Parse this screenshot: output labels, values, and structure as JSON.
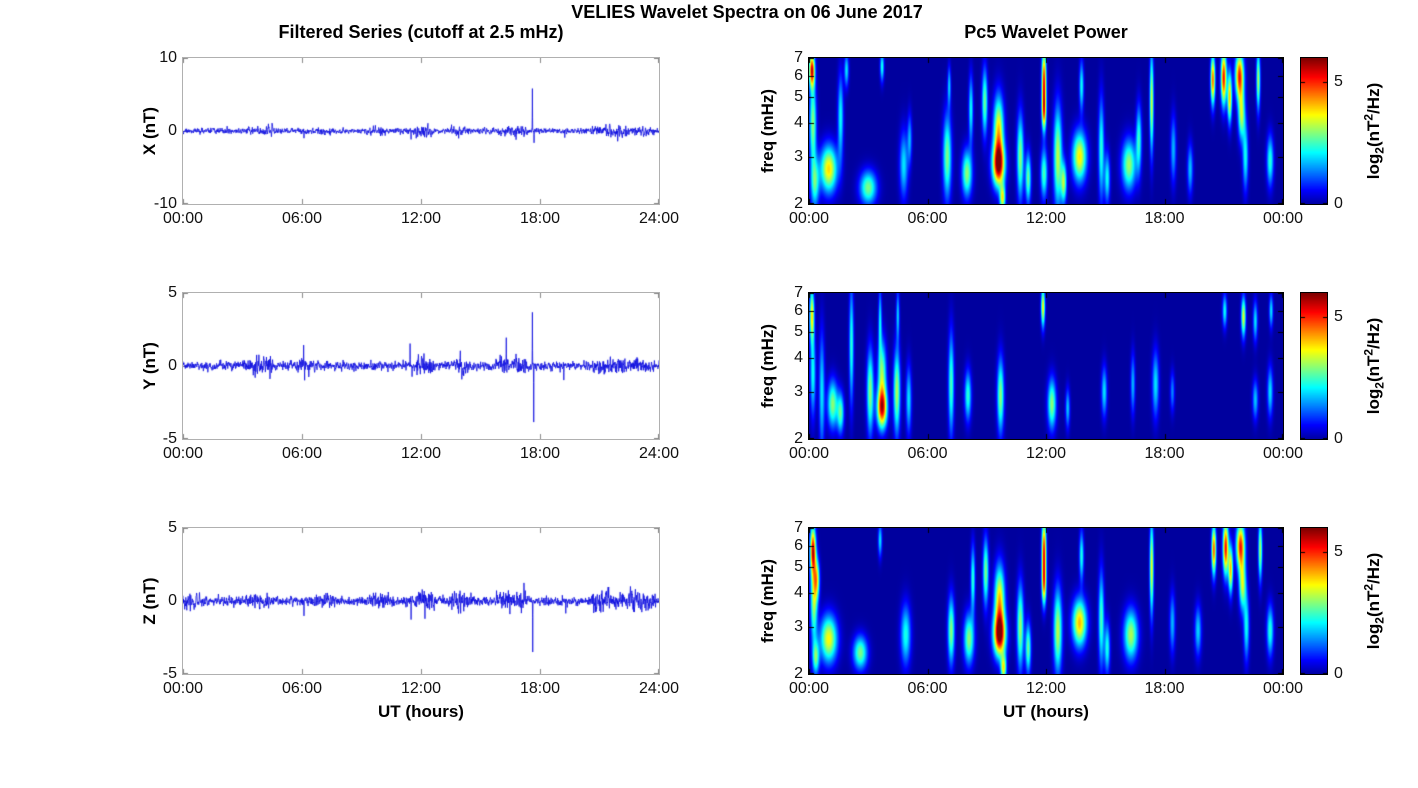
{
  "figure_title": "VELIES Wavelet Spectra on 06 June 2017",
  "chart_data": {
    "type": "multi-panel",
    "left_column": {
      "type": "line",
      "title": "Filtered Series (cutoff at 2.5 mHz)",
      "xlabel": "UT (hours)",
      "x_ticks": [
        "00:00",
        "06:00",
        "12:00",
        "18:00",
        "24:00"
      ],
      "x_range_hours": [
        0,
        24
      ],
      "line_color": "#0d0de0",
      "panels": [
        {
          "ylabel": "X (nT)",
          "ylim": [
            -10,
            10
          ],
          "yticks": [
            10,
            0,
            -10
          ],
          "seed": 11,
          "noise_sigma": 0.13,
          "bursts": [
            [
              3.4,
              4.6,
              0.08
            ],
            [
              6.9,
              7.4,
              0.06
            ],
            [
              9.4,
              10.2,
              0.07
            ],
            [
              11.8,
              12.5,
              0.17
            ],
            [
              13.5,
              14.3,
              0.08
            ],
            [
              16.0,
              17.3,
              0.12
            ],
            [
              20.7,
              22.6,
              0.17
            ],
            [
              22.9,
              23.7,
              0.1
            ]
          ],
          "spikes": [
            [
              6.1,
              -1.0
            ],
            [
              9.7,
              0.8
            ],
            [
              11.5,
              -1.2
            ],
            [
              13.9,
              -1.3
            ],
            [
              17.62,
              5.7
            ],
            [
              17.7,
              -1.6
            ],
            [
              19.25,
              -0.9
            ]
          ]
        },
        {
          "ylabel": "Y (nT)",
          "ylim": [
            -5,
            5
          ],
          "yticks": [
            5,
            0,
            -5
          ],
          "seed": 23,
          "noise_sigma": 0.1,
          "bursts": [
            [
              3.2,
              4.4,
              0.12
            ],
            [
              5.9,
              6.3,
              0.08
            ],
            [
              11.8,
              12.5,
              0.14
            ],
            [
              13.8,
              14.3,
              0.1
            ],
            [
              15.9,
              17.3,
              0.14
            ],
            [
              20.7,
              22.7,
              0.08
            ],
            [
              22.9,
              23.6,
              0.07
            ]
          ],
          "spikes": [
            [
              6.08,
              1.3
            ],
            [
              6.13,
              -1.1
            ],
            [
              8.0,
              -0.6
            ],
            [
              11.45,
              1.45
            ],
            [
              11.55,
              -0.7
            ],
            [
              12.15,
              0.9
            ],
            [
              13.98,
              1.2
            ],
            [
              14.06,
              -0.95
            ],
            [
              16.3,
              1.15
            ],
            [
              17.62,
              3.7
            ],
            [
              17.68,
              -3.85
            ],
            [
              19.2,
              -0.9
            ]
          ]
        },
        {
          "ylabel": "Z (nT)",
          "ylim": [
            -5,
            5
          ],
          "yticks": [
            5,
            0,
            -5
          ],
          "seed": 37,
          "noise_sigma": 0.11,
          "bursts": [
            [
              0.0,
              0.7,
              0.09
            ],
            [
              3.3,
              4.3,
              0.07
            ],
            [
              6.8,
              7.4,
              0.06
            ],
            [
              9.6,
              10.5,
              0.11
            ],
            [
              11.8,
              12.6,
              0.15
            ],
            [
              13.6,
              14.6,
              0.11
            ],
            [
              15.9,
              17.3,
              0.13
            ],
            [
              20.7,
              22.8,
              0.16
            ],
            [
              23.0,
              23.7,
              0.09
            ]
          ],
          "spikes": [
            [
              6.1,
              -0.9
            ],
            [
              11.5,
              -1.35
            ],
            [
              12.2,
              -1.0
            ],
            [
              14.0,
              -0.8
            ],
            [
              17.63,
              -3.5
            ],
            [
              19.3,
              -0.85
            ],
            [
              21.0,
              0.9
            ]
          ]
        }
      ]
    },
    "right_column": {
      "type": "heatmap",
      "title": "Pc5 Wavelet Power",
      "xlabel": "UT (hours)",
      "x_ticks": [
        "00:00",
        "06:00",
        "12:00",
        "18:00",
        "00:00"
      ],
      "x_range_hours": [
        0,
        24
      ],
      "freq_axis": {
        "label": "freq (mHz)",
        "ticks": [
          7,
          6,
          5,
          4,
          3,
          2
        ],
        "scale": "log",
        "range_mhz": [
          2,
          7
        ]
      },
      "colorbar": {
        "ticks": [
          5,
          0
        ],
        "range": [
          0,
          6
        ],
        "colormap": "jet",
        "label": {
          "base": "log",
          "sub": "2",
          "open": "(nT",
          "sup": "2",
          "close": "/Hz)"
        }
      },
      "features_format": "[time_hours, freq_mHz, sigma_time_hours, sigma_ln_freq, log2_power]",
      "panels": [
        {
          "component": "X",
          "features": [
            [
              0.15,
              6.3,
              0.1,
              0.1,
              5.2
            ],
            [
              0.2,
              4.0,
              0.12,
              0.25,
              3.0
            ],
            [
              0.3,
              2.4,
              0.15,
              0.15,
              2.5
            ],
            [
              1.0,
              2.7,
              0.3,
              0.14,
              3.9
            ],
            [
              1.6,
              4.2,
              0.1,
              0.25,
              2.2
            ],
            [
              1.9,
              6.3,
              0.08,
              0.1,
              2.0
            ],
            [
              3.0,
              2.3,
              0.3,
              0.1,
              2.9
            ],
            [
              3.7,
              6.5,
              0.07,
              0.09,
              2.3
            ],
            [
              4.8,
              2.8,
              0.15,
              0.2,
              2.0
            ],
            [
              5.1,
              3.5,
              0.08,
              0.15,
              1.6
            ],
            [
              7.0,
              3.0,
              0.15,
              0.25,
              2.9
            ],
            [
              7.1,
              5.5,
              0.06,
              0.12,
              1.8
            ],
            [
              8.0,
              2.6,
              0.18,
              0.14,
              3.0
            ],
            [
              8.2,
              4.5,
              0.08,
              0.2,
              2.2
            ],
            [
              8.9,
              4.8,
              0.1,
              0.2,
              2.8
            ],
            [
              9.6,
              2.8,
              0.22,
              0.13,
              5.6
            ],
            [
              9.6,
              3.8,
              0.18,
              0.2,
              3.8
            ],
            [
              9.8,
              2.1,
              0.1,
              0.08,
              3.5
            ],
            [
              10.7,
              3.0,
              0.12,
              0.25,
              3.0
            ],
            [
              11.1,
              2.5,
              0.1,
              0.15,
              2.8
            ],
            [
              11.9,
              5.8,
              0.08,
              0.18,
              5.0
            ],
            [
              11.9,
              4.4,
              0.08,
              0.12,
              3.8
            ],
            [
              11.9,
              2.6,
              0.12,
              0.15,
              2.6
            ],
            [
              12.6,
              3.0,
              0.15,
              0.3,
              3.3
            ],
            [
              12.9,
              2.4,
              0.1,
              0.12,
              3.0
            ],
            [
              13.7,
              3.0,
              0.25,
              0.15,
              3.8
            ],
            [
              13.8,
              5.5,
              0.08,
              0.15,
              2.2
            ],
            [
              14.8,
              3.2,
              0.1,
              0.3,
              2.4
            ],
            [
              15.1,
              2.5,
              0.1,
              0.15,
              2.2
            ],
            [
              16.2,
              2.8,
              0.25,
              0.15,
              3.1
            ],
            [
              16.7,
              3.5,
              0.1,
              0.2,
              2.4
            ],
            [
              17.35,
              4.8,
              0.07,
              0.3,
              3.4
            ],
            [
              18.45,
              3.2,
              0.1,
              0.2,
              1.7
            ],
            [
              19.3,
              2.7,
              0.1,
              0.15,
              1.8
            ],
            [
              20.45,
              5.8,
              0.08,
              0.15,
              4.6
            ],
            [
              21.0,
              5.9,
              0.1,
              0.16,
              5.2
            ],
            [
              21.3,
              5.0,
              0.08,
              0.15,
              4.0
            ],
            [
              21.8,
              6.0,
              0.15,
              0.14,
              5.0
            ],
            [
              21.9,
              4.3,
              0.12,
              0.15,
              3.2
            ],
            [
              22.1,
              3.0,
              0.1,
              0.2,
              2.2
            ],
            [
              22.75,
              5.8,
              0.07,
              0.18,
              3.2
            ],
            [
              23.35,
              2.9,
              0.12,
              0.15,
              2.4
            ]
          ]
        },
        {
          "component": "Y",
          "features": [
            [
              0.15,
              5.8,
              0.08,
              0.16,
              3.7
            ],
            [
              0.2,
              3.5,
              0.1,
              0.25,
              2.2
            ],
            [
              0.65,
              3.0,
              0.1,
              0.35,
              2.0
            ],
            [
              1.2,
              2.7,
              0.18,
              0.14,
              3.0
            ],
            [
              1.6,
              2.5,
              0.12,
              0.12,
              2.6
            ],
            [
              2.15,
              4.5,
              0.08,
              0.35,
              2.4
            ],
            [
              3.1,
              3.0,
              0.12,
              0.25,
              3.0
            ],
            [
              3.7,
              2.6,
              0.18,
              0.12,
              4.9
            ],
            [
              3.7,
              3.5,
              0.15,
              0.2,
              3.0
            ],
            [
              3.6,
              5.5,
              0.06,
              0.2,
              2.0
            ],
            [
              4.45,
              3.0,
              0.12,
              0.25,
              3.2
            ],
            [
              4.5,
              5.8,
              0.06,
              0.15,
              1.8
            ],
            [
              5.05,
              2.8,
              0.1,
              0.2,
              2.0
            ],
            [
              7.2,
              3.2,
              0.1,
              0.3,
              2.6
            ],
            [
              8.05,
              2.9,
              0.12,
              0.15,
              2.4
            ],
            [
              9.7,
              2.9,
              0.12,
              0.22,
              3.0
            ],
            [
              11.85,
              6.2,
              0.07,
              0.12,
              3.7
            ],
            [
              12.3,
              2.7,
              0.15,
              0.15,
              3.0
            ],
            [
              13.1,
              2.6,
              0.08,
              0.12,
              1.8
            ],
            [
              14.95,
              3.0,
              0.1,
              0.15,
              2.0
            ],
            [
              16.4,
              3.2,
              0.08,
              0.18,
              1.7
            ],
            [
              17.55,
              3.2,
              0.12,
              0.2,
              2.0
            ],
            [
              18.4,
              3.0,
              0.08,
              0.12,
              1.4
            ],
            [
              21.05,
              6.0,
              0.08,
              0.1,
              2.2
            ],
            [
              22.0,
              5.7,
              0.08,
              0.12,
              3.5
            ],
            [
              22.6,
              5.5,
              0.08,
              0.12,
              2.0
            ],
            [
              22.6,
              2.8,
              0.1,
              0.12,
              1.8
            ],
            [
              23.35,
              3.0,
              0.1,
              0.15,
              2.0
            ],
            [
              23.4,
              6.0,
              0.07,
              0.1,
              2.0
            ]
          ]
        },
        {
          "component": "Z",
          "features": [
            [
              0.2,
              5.8,
              0.1,
              0.14,
              5.0
            ],
            [
              0.25,
              3.8,
              0.12,
              0.25,
              3.2
            ],
            [
              0.4,
              4.5,
              0.1,
              0.12,
              3.0
            ],
            [
              0.35,
              2.3,
              0.12,
              0.1,
              2.6
            ],
            [
              1.0,
              2.7,
              0.3,
              0.14,
              3.7
            ],
            [
              2.6,
              2.4,
              0.25,
              0.1,
              2.9
            ],
            [
              3.6,
              6.3,
              0.07,
              0.1,
              2.0
            ],
            [
              4.9,
              2.8,
              0.18,
              0.18,
              2.3
            ],
            [
              7.2,
              2.9,
              0.12,
              0.2,
              3.0
            ],
            [
              8.1,
              2.7,
              0.18,
              0.15,
              3.0
            ],
            [
              8.3,
              4.5,
              0.08,
              0.2,
              2.4
            ],
            [
              8.95,
              4.8,
              0.1,
              0.2,
              2.9
            ],
            [
              9.65,
              2.8,
              0.22,
              0.13,
              5.6
            ],
            [
              9.65,
              3.8,
              0.18,
              0.2,
              3.9
            ],
            [
              9.85,
              2.1,
              0.1,
              0.08,
              3.5
            ],
            [
              10.7,
              3.0,
              0.12,
              0.25,
              3.1
            ],
            [
              11.1,
              2.5,
              0.1,
              0.15,
              2.8
            ],
            [
              11.9,
              5.8,
              0.08,
              0.18,
              5.0
            ],
            [
              11.9,
              4.3,
              0.08,
              0.13,
              3.8
            ],
            [
              12.6,
              2.9,
              0.15,
              0.25,
              3.3
            ],
            [
              13.7,
              3.1,
              0.25,
              0.14,
              4.1
            ],
            [
              13.8,
              5.5,
              0.08,
              0.15,
              2.3
            ],
            [
              14.8,
              3.2,
              0.1,
              0.28,
              2.6
            ],
            [
              15.1,
              2.5,
              0.1,
              0.15,
              2.3
            ],
            [
              16.3,
              2.8,
              0.25,
              0.15,
              3.2
            ],
            [
              17.35,
              5.0,
              0.07,
              0.28,
              3.6
            ],
            [
              18.4,
              3.1,
              0.1,
              0.18,
              1.7
            ],
            [
              19.7,
              2.9,
              0.12,
              0.15,
              1.9
            ],
            [
              20.5,
              5.8,
              0.08,
              0.15,
              4.7
            ],
            [
              21.1,
              5.9,
              0.1,
              0.16,
              5.2
            ],
            [
              21.35,
              4.9,
              0.08,
              0.14,
              4.0
            ],
            [
              21.85,
              6.0,
              0.15,
              0.14,
              5.0
            ],
            [
              21.95,
              4.3,
              0.12,
              0.15,
              3.3
            ],
            [
              22.15,
              3.0,
              0.1,
              0.2,
              2.2
            ],
            [
              22.85,
              5.8,
              0.07,
              0.18,
              3.2
            ],
            [
              23.35,
              2.9,
              0.12,
              0.15,
              2.4
            ]
          ]
        }
      ]
    }
  }
}
